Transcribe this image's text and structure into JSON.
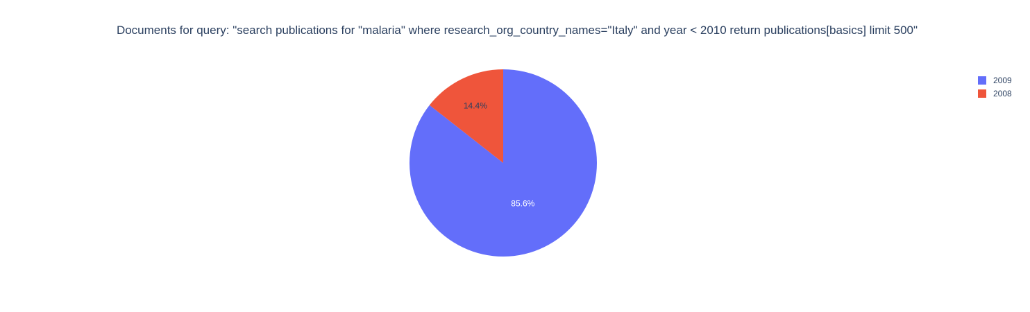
{
  "chart_data": {
    "type": "pie",
    "title": "Documents for query: \"search publications for \"malaria\" where research_org_country_names=\"Italy\" and year < 2010 return publications[basics] limit 500\"",
    "slices": [
      {
        "label": "2009",
        "value": 85.6,
        "text": "85.6%",
        "color": "#636efa"
      },
      {
        "label": "2008",
        "value": 14.4,
        "text": "14.4%",
        "color": "#ef553b"
      }
    ],
    "legend_position": "top-right",
    "legend": [
      "2009",
      "2008"
    ],
    "sort": "descending",
    "direction": "clockwise",
    "start_angle": "12 o'clock"
  }
}
